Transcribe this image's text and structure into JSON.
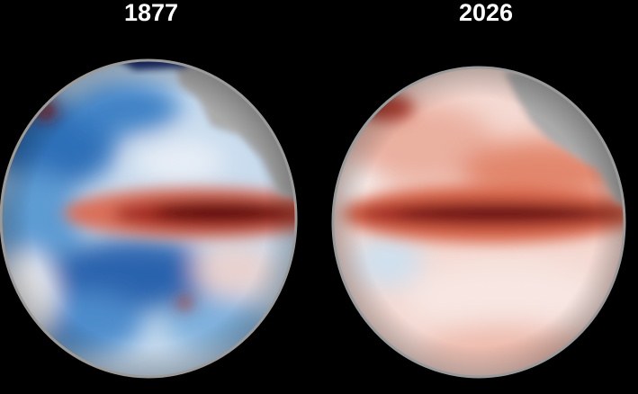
{
  "panels": [
    {
      "title": "1877"
    },
    {
      "title": "2026"
    }
  ]
}
